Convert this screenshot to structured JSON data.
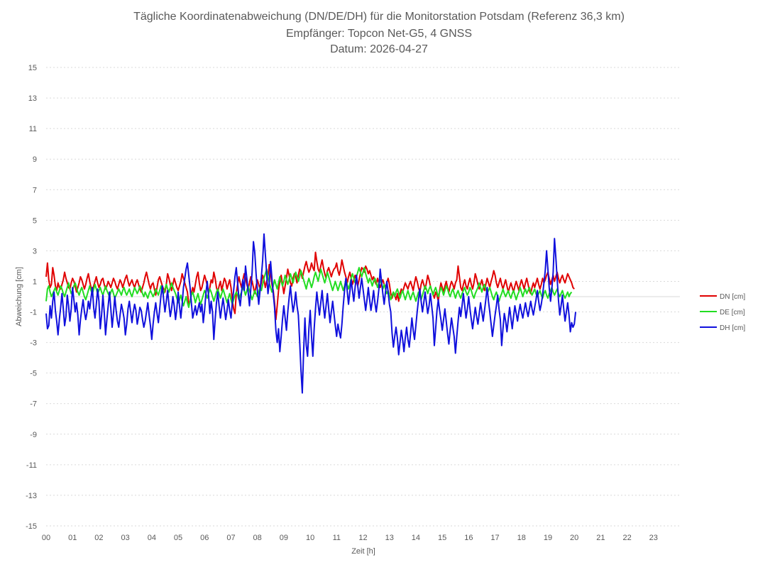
{
  "chart_data": {
    "type": "line",
    "title": [
      "Tägliche Koordinatenabweichung (DN/DE/DH) für die Monitorstation Potsdam (Referenz 36,3 km)",
      "Empfänger: Topcon Net-G5, 4 GNSS",
      "Datum: 2026-04-27"
    ],
    "xlabel": "Zeit [h]",
    "ylabel": "Abweichung [cm]",
    "xlim": [
      0,
      24
    ],
    "ylim": [
      -15,
      15
    ],
    "x_ticks": [
      "00",
      "01",
      "02",
      "03",
      "04",
      "05",
      "06",
      "07",
      "08",
      "09",
      "10",
      "11",
      "12",
      "13",
      "14",
      "15",
      "16",
      "17",
      "18",
      "19",
      "20",
      "21",
      "22",
      "23"
    ],
    "y_ticks": [
      "15",
      "13",
      "11",
      "9",
      "7",
      "5",
      "3",
      "1",
      "-1",
      "-3",
      "-5",
      "-7",
      "-9",
      "-11",
      "-13",
      "-15"
    ],
    "grid": "horizontal-dotted",
    "legend_position": "right",
    "x_step_hours": 0.05,
    "series": [
      {
        "name": "DN [cm]",
        "color": "#e00000",
        "values": [
          1.3,
          2.2,
          1.1,
          0.6,
          0.8,
          1.9,
          1.4,
          0.7,
          0.4,
          0.9,
          0.6,
          0.5,
          0.8,
          1.1,
          1.6,
          1.2,
          0.9,
          0.6,
          0.5,
          0.9,
          1.2,
          1.0,
          0.7,
          0.3,
          0.6,
          0.9,
          1.3,
          1.1,
          0.8,
          0.5,
          0.8,
          1.2,
          1.5,
          1.0,
          0.6,
          0.4,
          0.7,
          1.0,
          1.3,
          0.9,
          0.6,
          0.8,
          1.1,
          1.2,
          0.8,
          0.5,
          0.7,
          1.0,
          0.8,
          0.6,
          0.9,
          1.2,
          1.0,
          0.7,
          0.5,
          0.8,
          1.1,
          0.9,
          0.6,
          0.9,
          1.2,
          1.4,
          1.0,
          0.7,
          0.9,
          1.1,
          0.8,
          0.6,
          0.9,
          1.1,
          0.8,
          0.5,
          0.3,
          0.6,
          0.9,
          1.3,
          1.6,
          1.2,
          0.8,
          0.5,
          0.8,
          0.9,
          0.5,
          0.1,
          0.6,
          1.1,
          1.3,
          1.0,
          0.7,
          0.5,
          0.3,
          0.8,
          1.5,
          1.2,
          0.8,
          0.4,
          0.8,
          1.2,
          0.9,
          0.6,
          0.4,
          0.7,
          1.0,
          1.5,
          1.2,
          0.9,
          0.6,
          0.3,
          -0.5,
          -0.3,
          0.2,
          0.6,
          0.3,
          0.8,
          1.3,
          1.6,
          0.9,
          0.4,
          0.6,
          1.0,
          1.4,
          1.1,
          0.7,
          0.2,
          0.6,
          1.1,
          0.9,
          1.6,
          1.2,
          0.6,
          0.3,
          0.7,
          1.0,
          0.4,
          0.8,
          1.2,
          1.0,
          0.5,
          0.8,
          1.1,
          0.6,
          -0.2,
          -0.8,
          -1.1,
          0.2,
          0.8,
          1.3,
          0.9,
          0.6,
          1.1,
          1.5,
          1.2,
          0.8,
          0.5,
          0.9,
          1.3,
          1.0,
          0.6,
          0.2,
          0.7,
          1.1,
          0.8,
          0.5,
          0.9,
          1.4,
          1.1,
          0.6,
          1.0,
          1.3,
          2.1,
          1.6,
          0.8,
          0.4,
          -0.4,
          -1.5,
          -0.6,
          0.4,
          1.0,
          1.4,
          0.8,
          0.2,
          0.7,
          1.2,
          1.8,
          1.4,
          0.9,
          0.7,
          1.2,
          1.5,
          1.3,
          0.9,
          1.4,
          1.8,
          1.6,
          1.2,
          1.6,
          2.0,
          2.3,
          1.9,
          1.6,
          1.8,
          2.2,
          1.9,
          1.7,
          2.9,
          2.3,
          1.8,
          1.6,
          2.0,
          2.4,
          1.9,
          1.5,
          1.2,
          1.7,
          1.9,
          1.6,
          1.3,
          1.6,
          1.8,
          1.9,
          2.2,
          1.7,
          1.4,
          1.8,
          2.4,
          2.0,
          1.6,
          1.3,
          0.9,
          1.3,
          1.6,
          1.2,
          0.8,
          1.1,
          1.4,
          1.0,
          0.7,
          1.1,
          1.5,
          1.9,
          1.8,
          1.6,
          2.0,
          1.8,
          1.5,
          1.7,
          1.4,
          1.1,
          1.3,
          1.0,
          0.8,
          1.2,
          0.9,
          0.6,
          0.9,
          1.1,
          0.8,
          0.6,
          0.9,
          1.2,
          0.8,
          0.2,
          -0.1,
          0.3,
          0.1,
          -0.2,
          0.2,
          -0.3,
          0.2,
          0.5,
          0.3,
          0.6,
          0.9,
          0.7,
          0.5,
          0.8,
          1.0,
          0.7,
          0.4,
          0.9,
          1.3,
          1.0,
          0.6,
          0.3,
          0.8,
          1.1,
          0.8,
          0.5,
          0.9,
          1.4,
          1.1,
          0.7,
          0.4,
          0.2,
          -0.1,
          0.3,
          0.1,
          -0.3,
          0.4,
          0.9,
          0.6,
          0.3,
          0.7,
          1.0,
          0.6,
          0.3,
          0.7,
          1.0,
          0.8,
          0.5,
          0.9,
          1.1,
          2.0,
          1.3,
          0.6,
          0.4,
          0.8,
          1.1,
          0.7,
          0.5,
          0.9,
          1.2,
          0.8,
          0.5,
          0.9,
          1.5,
          1.2,
          0.8,
          0.5,
          0.8,
          1.1,
          0.7,
          0.4,
          0.8,
          1.2,
          0.9,
          0.6,
          1.0,
          1.3,
          1.7,
          1.4,
          0.9,
          0.6,
          0.9,
          1.2,
          0.8,
          0.5,
          0.8,
          1.1,
          0.7,
          0.3,
          0.6,
          0.9,
          0.6,
          0.3,
          0.7,
          1.0,
          0.7,
          0.4,
          0.8,
          1.1,
          0.8,
          0.5,
          0.9,
          1.2,
          0.8,
          0.4,
          0.2,
          0.6,
          0.9,
          0.6,
          0.9,
          1.2,
          0.8,
          0.5,
          0.8,
          1.2,
          0.9,
          1.1,
          1.4,
          1.6,
          1.2,
          0.8,
          1.1,
          1.4,
          1.0,
          1.3,
          1.6,
          1.2,
          0.9,
          1.2,
          1.4,
          1.1,
          0.9,
          1.2,
          1.5,
          1.3,
          1.1,
          0.9,
          0.6,
          0.5
        ]
      },
      {
        "name": "DE [cm]",
        "color": "#22dd22",
        "values": [
          -0.3,
          0.5,
          0.7,
          0.3,
          0.0,
          0.2,
          0.4,
          0.6,
          0.3,
          0.1,
          0.4,
          0.7,
          0.5,
          0.2,
          0.0,
          0.3,
          0.6,
          0.9,
          0.5,
          0.2,
          0.4,
          0.7,
          0.9,
          0.6,
          0.3,
          0.1,
          0.4,
          0.6,
          0.3,
          0.0,
          -0.2,
          0.1,
          0.4,
          0.7,
          0.4,
          0.2,
          0.5,
          0.8,
          0.5,
          0.2,
          0.4,
          0.6,
          0.3,
          0.1,
          0.4,
          0.7,
          0.4,
          0.2,
          0.0,
          0.3,
          0.5,
          0.2,
          -0.1,
          0.1,
          0.3,
          0.5,
          0.3,
          0.1,
          0.4,
          0.6,
          0.3,
          0.1,
          0.3,
          0.5,
          0.2,
          0.0,
          0.3,
          0.6,
          0.4,
          0.2,
          0.4,
          0.7,
          0.5,
          0.2,
          0.0,
          0.3,
          0.1,
          -0.1,
          0.2,
          0.4,
          0.2,
          0.0,
          0.2,
          0.5,
          0.3,
          0.1,
          0.4,
          0.7,
          0.4,
          0.2,
          0.5,
          0.8,
          0.5,
          0.3,
          0.6,
          0.9,
          0.6,
          0.4,
          0.2,
          -0.1,
          -0.4,
          -0.2,
          0.1,
          -0.3,
          -0.6,
          -0.3,
          0.0,
          -0.4,
          -0.7,
          -0.3,
          0.1,
          0.3,
          0.0,
          -0.4,
          -0.1,
          0.2,
          -0.2,
          -0.5,
          -0.2,
          0.1,
          0.4,
          0.2,
          -0.1,
          0.2,
          0.5,
          0.3,
          0.0,
          -0.3,
          0.0,
          0.3,
          0.5,
          0.2,
          -0.1,
          0.2,
          0.5,
          0.2,
          -0.1,
          -0.4,
          -0.1,
          0.2,
          -0.2,
          -0.5,
          -0.2,
          0.1,
          0.3,
          0.1,
          -0.2,
          0.1,
          0.3,
          0.6,
          0.4,
          0.1,
          0.4,
          0.7,
          0.4,
          0.1,
          -0.2,
          0.1,
          0.4,
          0.2,
          0.0,
          0.3,
          0.6,
          0.4,
          0.8,
          1.2,
          1.5,
          1.8,
          1.3,
          0.9,
          0.6,
          0.3,
          0.7,
          1.1,
          0.8,
          0.5,
          0.9,
          1.3,
          1.0,
          0.7,
          1.0,
          1.4,
          1.1,
          0.8,
          1.1,
          1.5,
          1.2,
          0.9,
          1.3,
          1.6,
          1.3,
          1.0,
          1.3,
          1.7,
          1.4,
          1.1,
          0.8,
          0.5,
          0.9,
          1.2,
          0.9,
          0.6,
          0.9,
          1.3,
          1.6,
          1.3,
          1.0,
          1.4,
          1.8,
          1.5,
          1.2,
          0.9,
          1.2,
          1.6,
          1.3,
          1.0,
          0.7,
          0.4,
          0.7,
          1.0,
          0.7,
          0.4,
          0.7,
          1.0,
          0.7,
          0.4,
          0.7,
          1.1,
          0.8,
          0.5,
          0.8,
          1.2,
          1.5,
          1.2,
          0.9,
          1.3,
          1.6,
          1.9,
          1.6,
          1.3,
          1.6,
          1.9,
          1.5,
          1.2,
          0.9,
          1.2,
          1.0,
          0.7,
          1.0,
          1.2,
          0.9,
          0.6,
          0.9,
          1.1,
          0.8,
          0.5,
          0.8,
          0.5,
          0.2,
          0.4,
          0.1,
          -0.2,
          0.1,
          0.3,
          0.0,
          0.3,
          0.5,
          0.2,
          -0.1,
          0.2,
          0.4,
          0.1,
          -0.2,
          0.1,
          0.4,
          0.1,
          -0.2,
          0.1,
          0.3,
          0.0,
          -0.3,
          0.0,
          0.3,
          0.1,
          -0.2,
          0.1,
          0.4,
          0.7,
          0.5,
          0.2,
          0.5,
          0.7,
          0.4,
          0.1,
          0.4,
          0.6,
          0.3,
          0.0,
          0.3,
          0.6,
          0.4,
          0.1,
          0.4,
          0.7,
          0.5,
          0.2,
          0.0,
          0.3,
          0.5,
          0.2,
          -0.1,
          0.2,
          0.4,
          0.1,
          -0.1,
          0.2,
          0.4,
          0.6,
          0.3,
          0.1,
          0.3,
          0.6,
          0.4,
          0.1,
          -0.1,
          0.2,
          0.4,
          0.6,
          0.9,
          0.6,
          0.3,
          0.6,
          0.8,
          0.5,
          0.2,
          0.4,
          0.6,
          0.3,
          0.0,
          -0.2,
          0.1,
          0.3,
          0.0,
          -0.3,
          0.0,
          0.2,
          0.5,
          0.2,
          0.0,
          0.2,
          0.4,
          0.1,
          -0.1,
          0.2,
          0.4,
          0.1,
          -0.2,
          0.1,
          0.3,
          0.6,
          0.3,
          0.0,
          0.3,
          0.5,
          0.2,
          0.4,
          0.6,
          0.3,
          0.1,
          0.3,
          0.5,
          0.2,
          0.0,
          0.2,
          0.4,
          0.1,
          -0.1,
          0.2,
          0.4,
          0.1,
          -0.1,
          0.2,
          0.4,
          0.6,
          0.3,
          0.1,
          0.3,
          0.5,
          0.2,
          0.0,
          0.2,
          0.4,
          0.1,
          -0.1,
          0.1,
          0.3,
          0.0,
          0.2,
          0.3
        ]
      },
      {
        "name": "DH [cm]",
        "color": "#1010dd",
        "values": [
          -1.1,
          -2.1,
          -1.9,
          -0.6,
          -1.4,
          -0.3,
          0.3,
          -0.9,
          -1.6,
          -2.5,
          -1.5,
          -0.7,
          0.2,
          -0.8,
          -1.9,
          -1.3,
          0.1,
          -0.6,
          -1.6,
          -0.8,
          0.6,
          -0.2,
          -1.0,
          -0.4,
          -1.2,
          -2.5,
          -1.5,
          -0.8,
          -0.2,
          -1.0,
          -1.5,
          -1.0,
          -0.3,
          -0.8,
          -0.1,
          0.6,
          -0.7,
          -1.4,
          -0.5,
          0.5,
          -0.3,
          -2.1,
          -1.2,
          0.1,
          -1.0,
          -2.5,
          -1.5,
          -0.6,
          0.3,
          -0.8,
          -2.0,
          -1.1,
          0.0,
          -0.9,
          -1.6,
          -2.0,
          -1.2,
          -0.5,
          -0.9,
          -1.4,
          -2.5,
          -1.8,
          -0.8,
          -0.3,
          -1.0,
          -1.7,
          -1.0,
          -0.5,
          -0.9,
          -1.8,
          -1.3,
          -0.7,
          -0.9,
          -1.5,
          -2.0,
          -1.6,
          -1.0,
          -0.4,
          -1.2,
          -1.9,
          -2.8,
          -1.8,
          -1.0,
          -0.4,
          -1.1,
          -1.7,
          -0.8,
          0.1,
          0.7,
          -0.2,
          -1.0,
          -0.3,
          0.4,
          -0.5,
          -1.3,
          -0.8,
          0.0,
          -0.6,
          -1.5,
          -0.8,
          0.3,
          -0.6,
          -1.4,
          -0.5,
          0.6,
          1.2,
          1.8,
          2.2,
          1.4,
          0.6,
          -0.4,
          -1.4,
          -1.0,
          -0.6,
          -1.2,
          -0.8,
          -0.4,
          -1.0,
          -0.5,
          -1.7,
          -0.9,
          0.2,
          1.0,
          0.1,
          -1.1,
          -0.3,
          -1.0,
          -2.8,
          -1.5,
          -0.4,
          0.3,
          -0.6,
          -1.4,
          -0.7,
          -0.1,
          -0.8,
          -1.5,
          -0.9,
          -0.2,
          -0.9,
          -1.4,
          -0.4,
          0.4,
          1.3,
          1.9,
          0.9,
          -0.1,
          -0.6,
          0.3,
          1.1,
          0.4,
          2.0,
          1.2,
          0.3,
          -0.6,
          0.5,
          1.6,
          3.6,
          2.9,
          1.5,
          0.4,
          -0.5,
          0.4,
          1.3,
          2.4,
          4.1,
          2.8,
          1.5,
          0.2,
          0.9,
          2.3,
          1.2,
          0.2,
          -0.7,
          -2.2,
          -3.0,
          -2.1,
          -3.6,
          -2.6,
          -1.5,
          -0.6,
          -1.4,
          -2.2,
          -1.0,
          -0.1,
          0.7,
          -0.2,
          -1.0,
          -0.5,
          0.3,
          -0.6,
          -1.2,
          -2.9,
          -4.8,
          -6.3,
          -3.6,
          -1.4,
          -3.2,
          -3.9,
          -2.1,
          -0.9,
          -2.6,
          -3.9,
          -2.1,
          -0.8,
          0.3,
          -0.5,
          -1.2,
          -0.4,
          0.4,
          -0.6,
          -1.4,
          -0.6,
          0.2,
          -0.8,
          -1.7,
          -1.0,
          -0.3,
          -1.1,
          -1.9,
          -2.6,
          -1.8,
          -2.3,
          -2.7,
          -1.8,
          -0.6,
          0.4,
          1.2,
          0.4,
          -0.5,
          0.3,
          1.1,
          0.4,
          -0.3,
          0.6,
          1.4,
          0.7,
          -0.1,
          0.6,
          1.2,
          0.5,
          -0.2,
          -0.9,
          -0.2,
          0.6,
          -0.2,
          -0.9,
          -0.3,
          0.4,
          -0.4,
          -1.0,
          -0.3,
          0.5,
          1.8,
          1.0,
          0.2,
          -0.5,
          0.3,
          1.0,
          0.3,
          -0.5,
          -1.0,
          -2.4,
          -3.3,
          -2.6,
          -2.0,
          -2.7,
          -3.8,
          -3.0,
          -2.2,
          -2.8,
          -3.6,
          -2.7,
          -2.0,
          -2.8,
          -3.3,
          -2.4,
          -1.4,
          -2.2,
          -2.8,
          -1.9,
          -1.0,
          -0.2,
          0.5,
          -0.3,
          -1.0,
          -0.4,
          0.3,
          -0.4,
          -1.1,
          -0.6,
          0.2,
          -0.6,
          -1.4,
          -3.2,
          -2.1,
          -0.9,
          -0.2,
          -0.9,
          -1.5,
          -2.2,
          -1.5,
          -0.8,
          -1.6,
          -2.4,
          -3.1,
          -2.2,
          -1.4,
          -2.0,
          -2.6,
          -3.7,
          -2.6,
          -1.6,
          -0.7,
          -1.3,
          -0.6,
          0.2,
          -0.6,
          -1.4,
          -0.8,
          0.0,
          -0.8,
          -1.5,
          -2.1,
          -1.4,
          -0.7,
          -1.3,
          -1.8,
          -1.1,
          -0.4,
          -1.0,
          -1.6,
          -0.9,
          -0.2,
          0.6,
          -0.3,
          -1.0,
          -1.8,
          -2.6,
          -1.9,
          -1.2,
          -0.6,
          0.1,
          -0.8,
          -1.5,
          -3.2,
          -2.1,
          -1.1,
          -1.6,
          -2.3,
          -1.5,
          -0.7,
          -1.4,
          -2.1,
          -1.3,
          -0.6,
          -1.1,
          -1.6,
          -1.0,
          -0.5,
          -1.0,
          -1.4,
          -0.9,
          -0.4,
          -0.9,
          -1.3,
          -0.8,
          -0.3,
          -0.8,
          -1.2,
          -0.7,
          -0.2,
          0.4,
          -0.3,
          -0.9,
          -0.5,
          0.1,
          0.9,
          1.7,
          3.0,
          1.8,
          0.6,
          -0.3,
          0.5,
          1.6,
          3.8,
          2.6,
          1.2,
          -0.2,
          -1.2,
          -0.6,
          0.1,
          -0.8,
          -1.6,
          -1.0,
          -0.4,
          -1.2,
          -2.3,
          -1.7,
          -2.0,
          -1.8,
          -1.0
        ]
      }
    ]
  }
}
